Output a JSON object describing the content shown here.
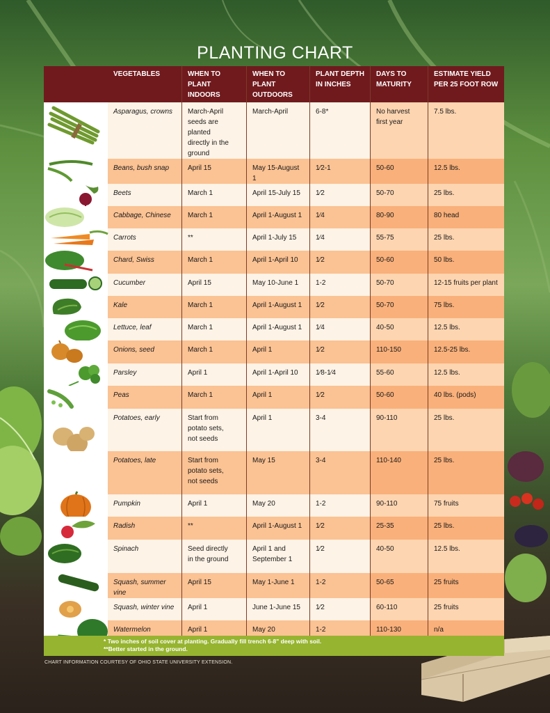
{
  "title": "PLANTING CHART",
  "headers": {
    "vegetables": "VEGETABLES",
    "when_indoors": [
      "WHEN TO",
      "PLANT",
      "INDOORS"
    ],
    "when_outdoors": [
      "WHEN TO",
      "PLANT",
      "OUTDOORS"
    ],
    "depth": [
      "PLANT DEPTH",
      "IN INCHES"
    ],
    "days": [
      "DAYS TO",
      "MATURITY"
    ],
    "yield": [
      "ESTIMATE YIELD",
      "PER 25 FOOT ROW"
    ]
  },
  "rows": [
    {
      "veg": "Asparagus, crowns",
      "icon": "asparagus-icon",
      "indoors": [
        "March-April",
        "seeds are planted",
        "directly in the",
        "ground"
      ],
      "outdoors": [
        "March-April"
      ],
      "depth": [
        "6-8*"
      ],
      "days": [
        "No harvest",
        "first year"
      ],
      "yield": [
        "7.5 lbs."
      ]
    },
    {
      "veg": "Beans, bush snap",
      "icon": "beans-icon",
      "indoors": [
        "April 15"
      ],
      "outdoors": [
        "May 15-August 1"
      ],
      "depth": [
        "1⁄2-1"
      ],
      "days": [
        "50-60"
      ],
      "yield": [
        "12.5 lbs."
      ]
    },
    {
      "veg": "Beets",
      "icon": "beet-icon",
      "indoors": [
        "March 1"
      ],
      "outdoors": [
        "April 15-July 15"
      ],
      "depth": [
        "1⁄2"
      ],
      "days": [
        "50-70"
      ],
      "yield": [
        "25 lbs."
      ]
    },
    {
      "veg": "Cabbage, Chinese",
      "icon": "cabbage-icon",
      "indoors": [
        "March 1"
      ],
      "outdoors": [
        "April 1-August 1"
      ],
      "depth": [
        "1⁄4"
      ],
      "days": [
        "80-90"
      ],
      "yield": [
        "80 head"
      ]
    },
    {
      "veg": "Carrots",
      "icon": "carrot-icon",
      "indoors": [
        "**"
      ],
      "outdoors": [
        "April 1-July 15"
      ],
      "depth": [
        "1⁄4"
      ],
      "days": [
        "55-75"
      ],
      "yield": [
        "25 lbs."
      ]
    },
    {
      "veg": "Chard, Swiss",
      "icon": "chard-icon",
      "indoors": [
        "March 1"
      ],
      "outdoors": [
        "April 1-April 10"
      ],
      "depth": [
        "1⁄2"
      ],
      "days": [
        "50-60"
      ],
      "yield": [
        "50 lbs."
      ]
    },
    {
      "veg": "Cucumber",
      "icon": "cucumber-icon",
      "indoors": [
        "April 15"
      ],
      "outdoors": [
        "May 10-June 1"
      ],
      "depth": [
        "1-2"
      ],
      "days": [
        "50-70"
      ],
      "yield": [
        "12-15 fruits per plant"
      ]
    },
    {
      "veg": "Kale",
      "icon": "kale-icon",
      "indoors": [
        "March 1"
      ],
      "outdoors": [
        "April 1-August 1"
      ],
      "depth": [
        "1⁄2"
      ],
      "days": [
        "50-70"
      ],
      "yield": [
        "75 lbs."
      ]
    },
    {
      "veg": "Lettuce, leaf",
      "icon": "lettuce-icon",
      "indoors": [
        "March 1"
      ],
      "outdoors": [
        "April 1-August 1"
      ],
      "depth": [
        "1⁄4"
      ],
      "days": [
        "40-50"
      ],
      "yield": [
        "12.5 lbs."
      ]
    },
    {
      "veg": "Onions, seed",
      "icon": "onion-icon",
      "indoors": [
        "March 1"
      ],
      "outdoors": [
        "April 1"
      ],
      "depth": [
        "1⁄2"
      ],
      "days": [
        "110-150"
      ],
      "yield": [
        "12.5-25 lbs."
      ]
    },
    {
      "veg": "Parsley",
      "icon": "parsley-icon",
      "indoors": [
        "April 1"
      ],
      "outdoors": [
        "April 1-April 10"
      ],
      "depth": [
        "1⁄8-1⁄4"
      ],
      "days": [
        "55-60"
      ],
      "yield": [
        "12.5 lbs."
      ]
    },
    {
      "veg": "Peas",
      "icon": "peas-icon",
      "indoors": [
        "March 1"
      ],
      "outdoors": [
        "April 1"
      ],
      "depth": [
        "1⁄2"
      ],
      "days": [
        "50-60"
      ],
      "yield": [
        "40 lbs. (pods)"
      ]
    },
    {
      "veg": "Potatoes, early",
      "icon": "potato-icon",
      "indoors": [
        "Start from",
        "potato sets,",
        "not seeds"
      ],
      "outdoors": [
        "April 1"
      ],
      "depth": [
        "3-4"
      ],
      "days": [
        "90-110"
      ],
      "yield": [
        "25 lbs."
      ]
    },
    {
      "veg": "Potatoes, late",
      "icon": "",
      "indoors": [
        "Start from",
        "potato sets,",
        "not seeds"
      ],
      "outdoors": [
        "May 15"
      ],
      "depth": [
        "3-4"
      ],
      "days": [
        "110-140"
      ],
      "yield": [
        "25 lbs."
      ]
    },
    {
      "veg": "Pumpkin",
      "icon": "pumpkin-icon",
      "indoors": [
        "April 1"
      ],
      "outdoors": [
        "May 20"
      ],
      "depth": [
        "1-2"
      ],
      "days": [
        "90-110"
      ],
      "yield": [
        "75 fruits"
      ]
    },
    {
      "veg": "Radish",
      "icon": "radish-icon",
      "indoors": [
        "**"
      ],
      "outdoors": [
        "April 1-August 1"
      ],
      "depth": [
        "1⁄2"
      ],
      "days": [
        "25-35"
      ],
      "yield": [
        "25 lbs."
      ]
    },
    {
      "veg": "Spinach",
      "icon": "spinach-icon",
      "indoors": [
        "Seed directly",
        "in the ground"
      ],
      "outdoors": [
        "April 1 and",
        "September 1"
      ],
      "depth": [
        "1⁄2"
      ],
      "days": [
        "40-50"
      ],
      "yield": [
        "12.5 lbs."
      ]
    },
    {
      "veg": "Squash, summer vine",
      "icon": "zucchini-icon",
      "indoors": [
        "April 15"
      ],
      "outdoors": [
        "May 1-June 1"
      ],
      "depth": [
        "1-2"
      ],
      "days": [
        "50-65"
      ],
      "yield": [
        "25 fruits"
      ]
    },
    {
      "veg": "Squash, winter vine",
      "icon": "butternut-squash-icon",
      "indoors": [
        "April 1"
      ],
      "outdoors": [
        "June 1-June 15"
      ],
      "depth": [
        "1⁄2"
      ],
      "days": [
        "60-110"
      ],
      "yield": [
        "25 fruits"
      ]
    },
    {
      "veg": "Watermelon",
      "icon": "watermelon-icon",
      "indoors": [
        "April 1"
      ],
      "outdoors": [
        "May 20"
      ],
      "depth": [
        "1-2"
      ],
      "days": [
        "110-130"
      ],
      "yield": [
        "n/a"
      ]
    }
  ],
  "footnotes": [
    "* Two inches of soil cover at planting. Gradually fill trench 6-8\" deep with soil.",
    "**Better started in the ground."
  ],
  "credit": "CHART INFORMATION COURTESY OF OHIO STATE UNIVERSITY EXTENSION.",
  "colors": {
    "header": "#701a1e",
    "row_light": "#fdf3e6",
    "row_orange": "#fbc293",
    "footer": "#96b42f",
    "title": "#ffffff"
  }
}
